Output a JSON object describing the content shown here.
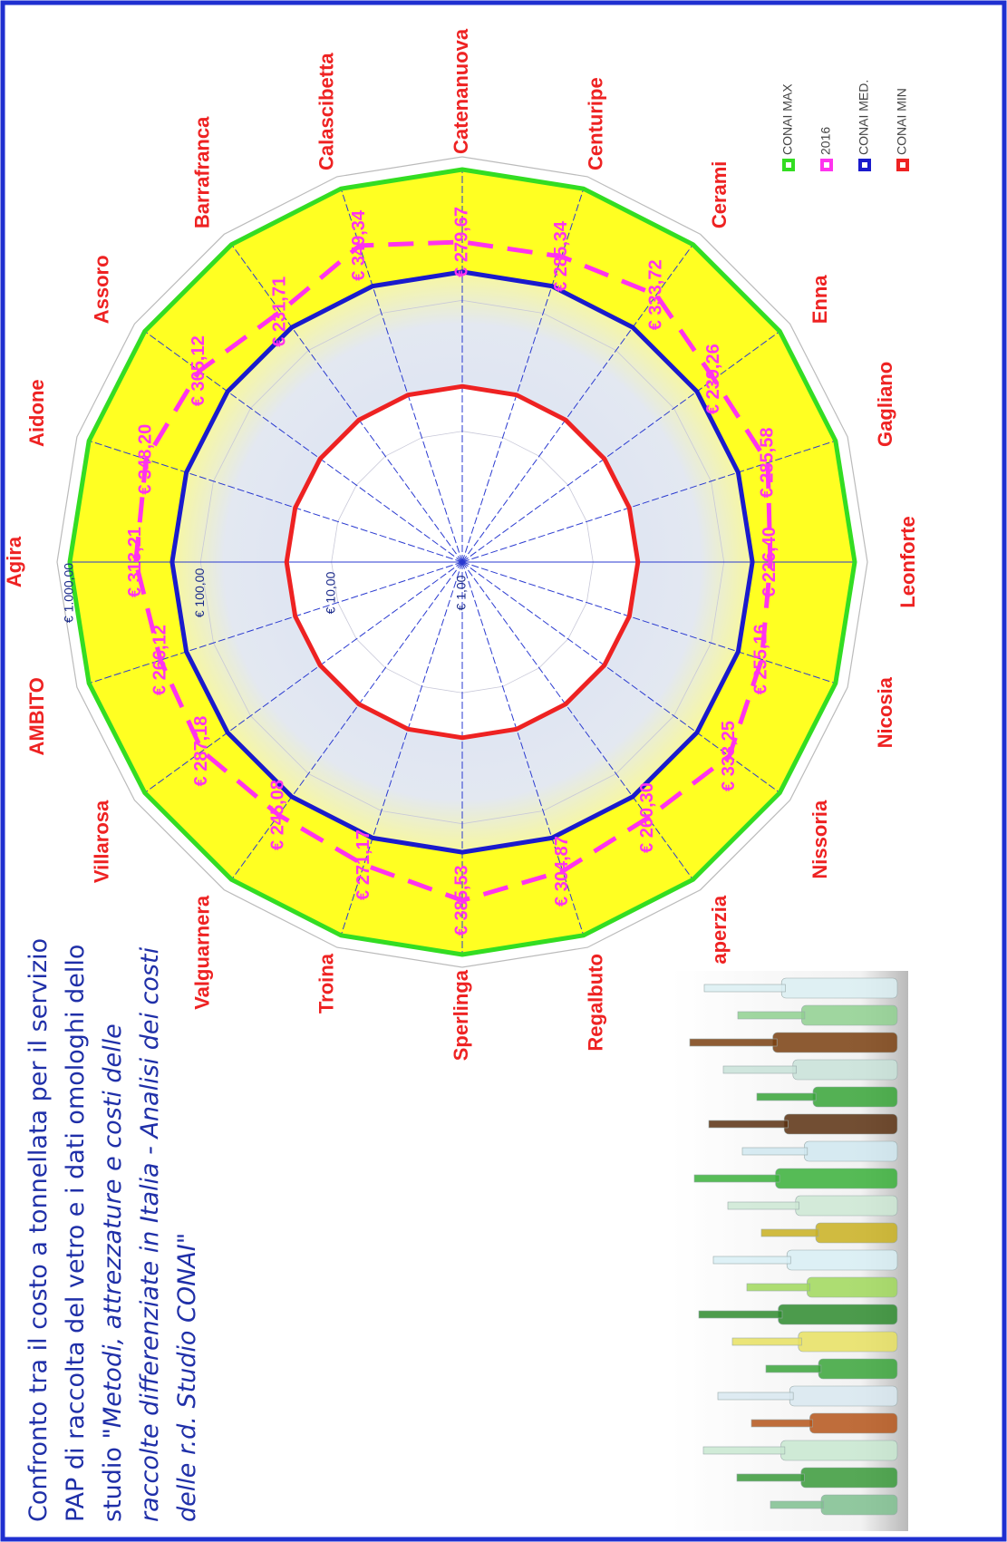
{
  "chart_data": {
    "type": "radar",
    "title": "Confronto tra il costo a tonnellata per il servizio PAP di raccolta del vetro e i dati omologhi dello studio ",
    "subtitle": "\"Metodi, attrezzature e costi delle raccolte differenziate in Italia - Analisi dei costi delle r.d.  Studio CONAI\"",
    "categories": [
      "Agira",
      "Aidone",
      "Assoro",
      "Barrafranca",
      "Calascibetta",
      "Catenanuova",
      "Centuripe",
      "Cerami",
      "Enna",
      "Gagliano",
      "Leonforte",
      "Nicosia",
      "Nissoria",
      "aperzia",
      "Regalbuto",
      "Sperlinga",
      "Troina",
      "Valguarnera",
      "Villarosa",
      "AMBITO"
    ],
    "series": [
      {
        "name": "CONAI MAX",
        "color": "#33dd22",
        "values": [
          1000,
          1000,
          1000,
          1000,
          1000,
          1000,
          1000,
          1000,
          1000,
          1000,
          1000,
          1000,
          1000,
          1000,
          1000,
          1000,
          1000,
          1000,
          1000,
          1000
        ]
      },
      {
        "name": "2016",
        "color": "#ff33ee",
        "dashed": true,
        "values": [
          313.21,
          348.2,
          305.12,
          231.71,
          349.34,
          279.67,
          285.34,
          333.72,
          239.26,
          285.58,
          226.4,
          255.16,
          333.25,
          260.3,
          304.87,
          385.53,
          271.17,
          245.08,
          287.18,
          266.12
        ],
        "value_labels": [
          "€ 313,21",
          "€ 348,20",
          "€ 305,12",
          "€ 231,71",
          "€ 349,34",
          "€ 279,67",
          "€ 285,34",
          "€ 333,72",
          "€ 239,26",
          "€ 285,58",
          "€ 226,40",
          "€ 255,16",
          "€ 333,25",
          "€ 260,30",
          "€ 304,87",
          "€ 385,53",
          "€ 271,17",
          "€ 245,08",
          "€ 287,18",
          "€ 266,12"
        ]
      },
      {
        "name": "CONAI MED.",
        "color": "#1a1acc",
        "values": [
          165,
          165,
          165,
          165,
          165,
          165,
          165,
          165,
          165,
          165,
          165,
          165,
          165,
          165,
          165,
          165,
          165,
          165,
          165,
          165
        ]
      },
      {
        "name": "CONAI MIN",
        "color": "#ee2222",
        "values": [
          22,
          22,
          22,
          22,
          22,
          22,
          22,
          22,
          22,
          22,
          22,
          22,
          22,
          22,
          22,
          22,
          22,
          22,
          22,
          22
        ]
      }
    ],
    "log_scale": true,
    "rlim": [
      1,
      1000
    ],
    "rticks": [
      {
        "value": 1,
        "label": "€ 1,00"
      },
      {
        "value": 10,
        "label": "€ 10,00"
      },
      {
        "value": 100,
        "label": "€ 100,00"
      },
      {
        "value": 1000,
        "label": "€ 1.000,00"
      }
    ],
    "legend": "right"
  }
}
